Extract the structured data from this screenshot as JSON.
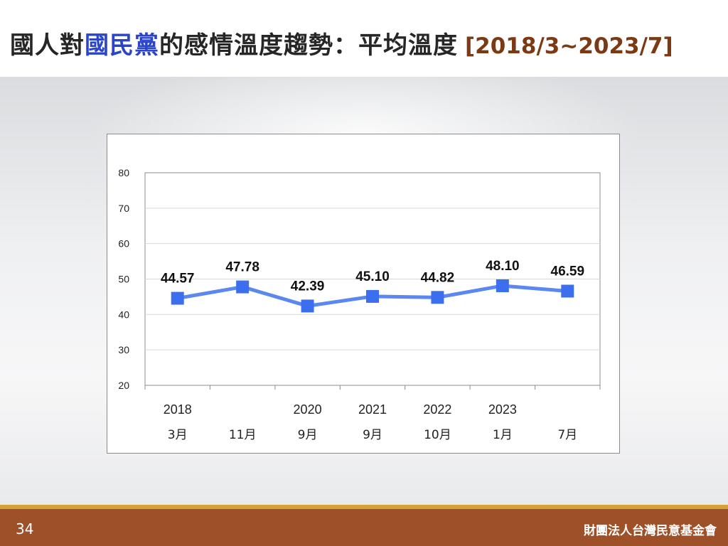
{
  "header": {
    "title_part1": "國人對",
    "title_highlight": "國民黨",
    "title_part2": "的感情溫度趨勢：平均溫度",
    "date_range": "[2018/3~2023/7]"
  },
  "colors": {
    "highlight": "#2a45c9",
    "range": "#7b3a14",
    "series_line": "#5b87f0",
    "series_marker": "#3c6ff0",
    "footer": "#9e5028",
    "footer_rule": "#d4a13a"
  },
  "chart_data": {
    "type": "line",
    "categories": [
      {
        "year": "2018",
        "month": "3月"
      },
      {
        "year": "",
        "month": "11月"
      },
      {
        "year": "2020",
        "month": "9月"
      },
      {
        "year": "2021",
        "month": "9月"
      },
      {
        "year": "2022",
        "month": "10月"
      },
      {
        "year": "2023",
        "month": "1月"
      },
      {
        "year": "",
        "month": "7月"
      }
    ],
    "series": [
      {
        "values": [
          44.57,
          47.78,
          42.39,
          45.1,
          44.82,
          48.1,
          46.59
        ],
        "labels": [
          "44.57",
          "47.78",
          "42.39",
          "45.10",
          "44.82",
          "48.10",
          "46.59"
        ]
      }
    ],
    "ylim": [
      20,
      80
    ],
    "yticks": [
      20,
      30,
      40,
      50,
      60,
      70,
      80
    ],
    "grid": true,
    "legend": "none"
  },
  "footer": {
    "page_number": "34",
    "organization": "財團法人台灣民意基金會"
  }
}
